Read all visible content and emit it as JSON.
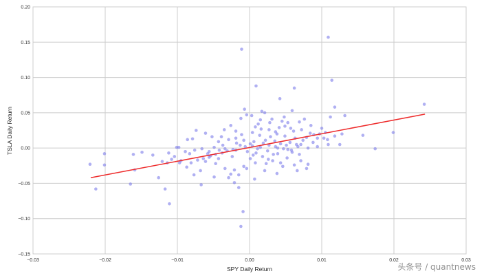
{
  "chart_data": {
    "type": "scatter",
    "title": "",
    "xlabel": "SPY Daily Return",
    "ylabel": "TSLA Daily Return",
    "xlim": [
      -0.03,
      0.03
    ],
    "ylim": [
      -0.15,
      0.2
    ],
    "xticks": [
      -0.03,
      -0.02,
      -0.01,
      0.0,
      0.01,
      0.02,
      0.03
    ],
    "yticks": [
      -0.15,
      -0.1,
      -0.05,
      0.0,
      0.05,
      0.1,
      0.15,
      0.2
    ],
    "xtick_labels": [
      "−0.03",
      "−0.02",
      "−0.01",
      "0.00",
      "0.01",
      "0.02",
      "0.03"
    ],
    "ytick_labels": [
      "−0.15",
      "−0.10",
      "−0.05",
      "0.00",
      "0.05",
      "0.10",
      "0.15",
      "0.20"
    ],
    "grid": true,
    "point_color": "#7b7bea",
    "line_color": "#ee2b2b",
    "regression_line": {
      "x": [
        -0.022,
        0.0243
      ],
      "y": [
        -0.042,
        0.048
      ]
    },
    "points": [
      [
        0.0109,
        0.157
      ],
      [
        -0.0011,
        0.14
      ],
      [
        0.0114,
        0.096
      ],
      [
        0.0009,
        0.088
      ],
      [
        0.0062,
        0.085
      ],
      [
        0.0042,
        0.07
      ],
      [
        0.0118,
        0.058
      ],
      [
        0.0059,
        0.053
      ],
      [
        -0.0007,
        0.055
      ],
      [
        0.0157,
        0.018
      ],
      [
        0.0132,
        0.046
      ],
      [
        0.0112,
        0.044
      ],
      [
        0.0076,
        0.041
      ],
      [
        0.0048,
        0.044
      ],
      [
        0.0021,
        0.05
      ],
      [
        0.0017,
        0.052
      ],
      [
        -0.0004,
        0.047
      ],
      [
        0.0003,
        0.046
      ],
      [
        0.0015,
        0.04
      ],
      [
        0.0031,
        0.041
      ],
      [
        0.0045,
        0.038
      ],
      [
        0.0069,
        0.037
      ],
      [
        0.0085,
        0.032
      ],
      [
        0.01,
        0.028
      ],
      [
        0.0128,
        0.02
      ],
      [
        0.0105,
        0.022
      ],
      [
        0.0097,
        0.02
      ],
      [
        0.0094,
        0.014
      ],
      [
        0.0108,
        0.012
      ],
      [
        0.0118,
        0.017
      ],
      [
        0.0125,
        0.005
      ],
      [
        0.0109,
        0.005
      ],
      [
        0.0174,
        -0.001
      ],
      [
        0.0199,
        0.022
      ],
      [
        0.0242,
        0.062
      ],
      [
        0.0084,
        0.021
      ],
      [
        0.0072,
        0.026
      ],
      [
        0.0057,
        0.028
      ],
      [
        0.0041,
        0.029
      ],
      [
        0.0027,
        0.026
      ],
      [
        0.0008,
        0.03
      ],
      [
        -0.0012,
        0.042
      ],
      [
        -0.0026,
        0.032
      ],
      [
        -0.0035,
        0.026
      ],
      [
        -0.0019,
        0.024
      ],
      [
        0.0004,
        0.022
      ],
      [
        0.0014,
        0.018
      ],
      [
        0.0029,
        0.016
      ],
      [
        0.0038,
        0.02
      ],
      [
        0.0049,
        0.017
      ],
      [
        0.0063,
        0.014
      ],
      [
        0.0074,
        0.011
      ],
      [
        0.0088,
        0.008
      ],
      [
        0.0056,
        0.008
      ],
      [
        0.0035,
        0.01
      ],
      [
        0.0019,
        0.007
      ],
      [
        0.0006,
        0.009
      ],
      [
        -0.0008,
        0.011
      ],
      [
        -0.0018,
        0.007
      ],
      [
        -0.0029,
        0.012
      ],
      [
        -0.0043,
        0.009
      ],
      [
        -0.0052,
        0.016
      ],
      [
        -0.0061,
        0.021
      ],
      [
        -0.0079,
        0.013
      ],
      [
        -0.0074,
        0.025
      ],
      [
        -0.0086,
        0.012
      ],
      [
        -0.0098,
        0.001
      ],
      [
        -0.0101,
        0.001
      ],
      [
        -0.0112,
        -0.007
      ],
      [
        -0.0121,
        -0.019
      ],
      [
        -0.0134,
        -0.01
      ],
      [
        -0.0149,
        -0.006
      ],
      [
        -0.0159,
        -0.031
      ],
      [
        -0.0161,
        -0.009
      ],
      [
        -0.0165,
        -0.051
      ],
      [
        -0.0201,
        -0.008
      ],
      [
        -0.0201,
        -0.024
      ],
      [
        -0.0213,
        -0.058
      ],
      [
        -0.0221,
        -0.023
      ],
      [
        -0.0117,
        -0.058
      ],
      [
        -0.0111,
        -0.079
      ],
      [
        -0.0126,
        -0.042
      ],
      [
        -0.0114,
        -0.021
      ],
      [
        -0.0095,
        -0.018
      ],
      [
        -0.0087,
        -0.027
      ],
      [
        -0.0077,
        -0.038
      ],
      [
        -0.0067,
        -0.052
      ],
      [
        -0.0068,
        -0.032
      ],
      [
        -0.0061,
        -0.019
      ],
      [
        -0.0054,
        -0.011
      ],
      [
        -0.0047,
        -0.022
      ],
      [
        -0.0042,
        -0.003
      ],
      [
        -0.0034,
        -0.029
      ],
      [
        -0.0026,
        -0.037
      ],
      [
        -0.0021,
        -0.049
      ],
      [
        -0.0015,
        -0.056
      ],
      [
        -0.0009,
        -0.09
      ],
      [
        -0.0012,
        -0.111
      ],
      [
        -0.0004,
        -0.029
      ],
      [
        0.0001,
        -0.015
      ],
      [
        0.0009,
        -0.007
      ],
      [
        0.0018,
        -0.012
      ],
      [
        0.0023,
        -0.022
      ],
      [
        0.0032,
        -0.018
      ],
      [
        0.0039,
        -0.008
      ],
      [
        0.0046,
        -0.026
      ],
      [
        0.0052,
        -0.014
      ],
      [
        0.0059,
        -0.006
      ],
      [
        0.0066,
        -0.032
      ],
      [
        0.0071,
        -0.018
      ],
      [
        0.0079,
        -0.029
      ],
      [
        0.0081,
        -0.023
      ],
      [
        0.0069,
        -0.009
      ],
      [
        0.0058,
        -0.003
      ],
      [
        0.0047,
        -0.001
      ],
      [
        0.0036,
        0.002
      ],
      [
        0.0027,
        0.004
      ],
      [
        0.0015,
        0.001
      ],
      [
        0.0004,
        0.003
      ],
      [
        -0.0006,
        0.002
      ],
      [
        -0.0013,
        0.004
      ],
      [
        -0.0023,
        -0.002
      ],
      [
        -0.0031,
        -0.004
      ],
      [
        -0.0038,
        -0.007
      ],
      [
        -0.0047,
        -0.009
      ],
      [
        -0.0056,
        -0.013
      ],
      [
        -0.0064,
        -0.015
      ],
      [
        -0.0072,
        -0.017
      ],
      [
        -0.0081,
        -0.021
      ],
      [
        -0.0089,
        -0.005
      ],
      [
        -0.0056,
        -0.005
      ],
      [
        -0.0034,
        -0.001
      ],
      [
        -0.0019,
        -0.003
      ],
      [
        -0.0003,
        -0.005
      ],
      [
        0.0011,
        -0.001
      ],
      [
        0.0025,
        -0.004
      ],
      [
        0.0039,
        0.0
      ],
      [
        0.0053,
        -0.002
      ],
      [
        0.0067,
        0.002
      ],
      [
        0.0081,
        0.0
      ],
      [
        0.0065,
        0.005
      ],
      [
        0.0043,
        0.006
      ],
      [
        0.0022,
        0.011
      ],
      [
        0.0001,
        0.006
      ],
      [
        -0.0019,
        0.014
      ],
      [
        -0.0037,
        0.004
      ],
      [
        -0.0049,
        0.001
      ],
      [
        -0.0066,
        -0.001
      ],
      [
        -0.0083,
        -0.008
      ],
      [
        -0.0104,
        -0.012
      ],
      [
        0.0012,
        0.034
      ],
      [
        0.0028,
        0.036
      ],
      [
        0.0049,
        0.031
      ],
      [
        0.0061,
        0.024
      ],
      [
        0.0079,
        0.015
      ],
      [
        0.0051,
        0.004
      ],
      [
        0.0033,
        -0.009
      ],
      [
        0.0008,
        -0.021
      ],
      [
        -0.0008,
        -0.026
      ],
      [
        -0.0021,
        -0.031
      ],
      [
        -0.0043,
        -0.015
      ],
      [
        -0.0058,
        -0.008
      ],
      [
        -0.0076,
        -0.003
      ],
      [
        0.0016,
        0.027
      ],
      [
        0.0036,
        0.023
      ],
      [
        -0.0011,
        0.019
      ],
      [
        -0.0039,
        0.016
      ],
      [
        0.0053,
        0.036
      ],
      [
        0.0071,
        0.005
      ],
      [
        0.0094,
        0.002
      ],
      [
        0.0103,
        0.014
      ],
      [
        0.0089,
        0.019
      ],
      [
        -0.0024,
        -0.012
      ],
      [
        0.0005,
        -0.01
      ],
      [
        0.0026,
        -0.016
      ],
      [
        0.0043,
        -0.021
      ],
      [
        0.0062,
        -0.024
      ],
      [
        -0.0097,
        -0.021
      ],
      [
        -0.0108,
        -0.016
      ],
      [
        -0.0049,
        -0.041
      ],
      [
        -0.0029,
        -0.042
      ],
      [
        -0.0015,
        -0.038
      ],
      [
        0.0007,
        -0.044
      ],
      [
        0.0021,
        -0.032
      ],
      [
        0.0038,
        -0.036
      ]
    ]
  },
  "watermark": "头条号 / quantnews"
}
